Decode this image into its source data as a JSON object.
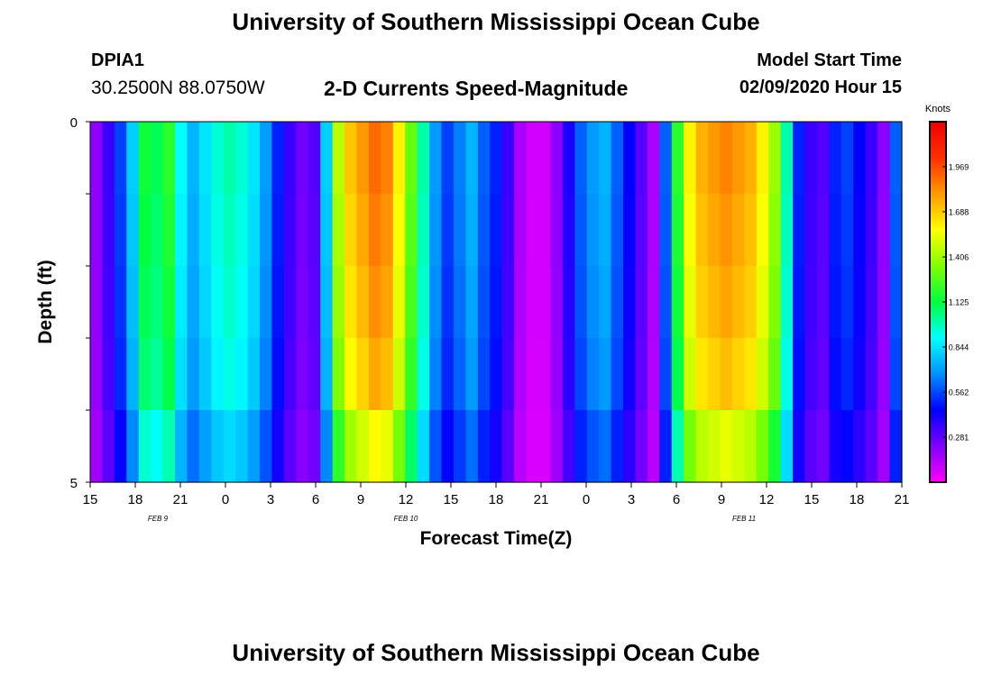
{
  "header": {
    "title": "University of Southern Mississippi Ocean Cube",
    "station_id": "DPIA1",
    "station_coords": "30.2500N 88.0750W",
    "plot_title": "2-D Currents Speed-Magnitude",
    "model_label": "Model Start Time",
    "model_time": "02/09/2020 Hour 15"
  },
  "footer": {
    "title": "University of Southern Mississippi Ocean Cube"
  },
  "colorbar": {
    "unit_label": "Knots",
    "tick_labels": [
      "1.969",
      "1.688",
      "1.406",
      "1.125",
      "0.844",
      "0.562",
      "0.281"
    ],
    "tick_values": [
      1.969,
      1.688,
      1.406,
      1.125,
      0.844,
      0.562,
      0.281
    ],
    "range": [
      0,
      2.25
    ],
    "stops": [
      "#ff00ff",
      "#8000ff",
      "#0000ff",
      "#0090ff",
      "#00ffff",
      "#00ff40",
      "#80ff00",
      "#ffff00",
      "#ff9900",
      "#ff3000",
      "#ee0000"
    ]
  },
  "chart_data": {
    "type": "heatmap",
    "xlabel": "Forecast Time(Z)",
    "ylabel": "Depth (ft)",
    "ylim": [
      0,
      5
    ],
    "y_tick_labels": [
      "0",
      "5"
    ],
    "x_tick_labels": [
      "15",
      "18",
      "21",
      "0",
      "3",
      "6",
      "9",
      "12",
      "15",
      "18",
      "21",
      "0",
      "3",
      "6",
      "9",
      "12",
      "15",
      "18",
      "21"
    ],
    "x_hours": [
      0,
      3,
      6,
      9,
      12,
      15,
      18,
      21,
      24,
      27,
      30,
      33,
      36,
      39,
      42,
      45,
      48,
      51,
      54
    ],
    "date_labels": [
      {
        "text": "FEB 9",
        "hour": 4.5
      },
      {
        "text": "FEB 10",
        "hour": 21
      },
      {
        "text": "FEB 11",
        "hour": 43.5
      }
    ],
    "depth_levels": 5,
    "surface_speed_knots": [
      0.2,
      0.35,
      0.55,
      0.8,
      1.15,
      1.1,
      1.2,
      0.9,
      0.75,
      0.85,
      0.95,
      1.0,
      0.95,
      0.85,
      0.7,
      0.5,
      0.35,
      0.25,
      0.3,
      0.8,
      1.45,
      1.7,
      1.8,
      1.9,
      1.85,
      1.6,
      1.3,
      1.0,
      0.7,
      0.55,
      0.65,
      0.75,
      0.6,
      0.5,
      0.35,
      0.15,
      0.08,
      0.08,
      0.2,
      0.4,
      0.6,
      0.7,
      0.75,
      0.6,
      0.45,
      0.3,
      0.15,
      0.6,
      1.2,
      1.6,
      1.75,
      1.8,
      1.85,
      1.8,
      1.75,
      1.6,
      1.4,
      1.0,
      0.5,
      0.35,
      0.3,
      0.5,
      0.55,
      0.45,
      0.35,
      0.2,
      0.6
    ]
  }
}
